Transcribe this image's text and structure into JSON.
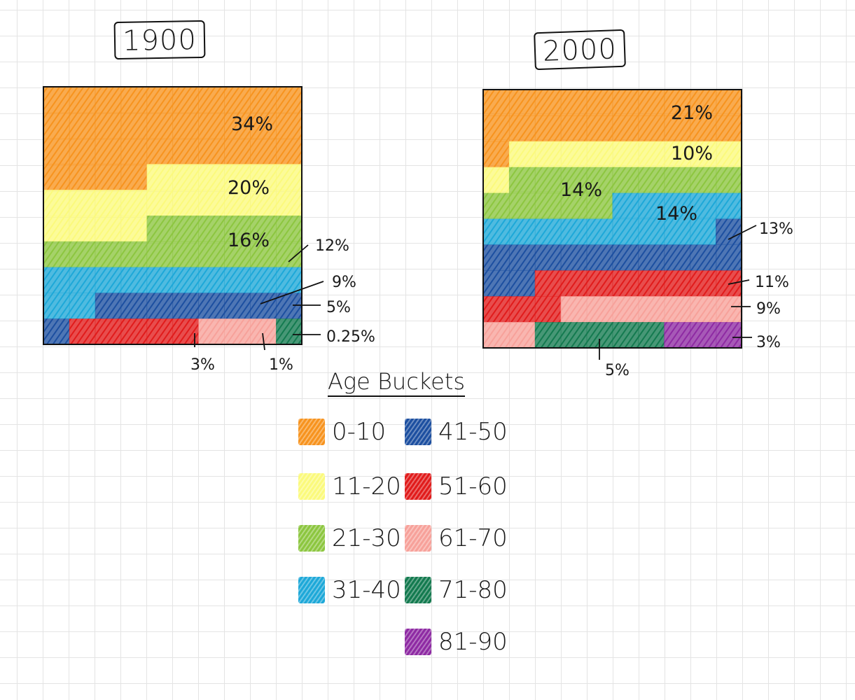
{
  "chart_data": [
    {
      "type": "waffle",
      "title": "1900",
      "grid_cells": 100,
      "series": [
        {
          "name": "0-10",
          "label": "34%",
          "value": 34,
          "color": "#f7931e"
        },
        {
          "name": "11-20",
          "label": "20%",
          "value": 20,
          "color": "#fbfa7c"
        },
        {
          "name": "21-30",
          "label": "16%",
          "value": 16,
          "color": "#8cc63f"
        },
        {
          "name": "31-40",
          "label": "12%",
          "value": 12,
          "color": "#1da8d8"
        },
        {
          "name": "41-50",
          "label": "9%",
          "value": 9,
          "color": "#1c4fa0"
        },
        {
          "name": "51-60",
          "label": "5%",
          "value": 5,
          "color": "#e11b1b"
        },
        {
          "name": "61-70",
          "label": "3%",
          "value": 3,
          "color": "#f7a19a"
        },
        {
          "name": "71-80",
          "label": "1%",
          "value": 1,
          "color": "#137a4f"
        },
        {
          "name": "81-90",
          "label": "0.25%",
          "value": 0.25,
          "color": "#8e2aa3"
        }
      ]
    },
    {
      "type": "waffle",
      "title": "2000",
      "grid_cells": 100,
      "series": [
        {
          "name": "0-10",
          "label": "21%",
          "value": 21,
          "color": "#f7931e"
        },
        {
          "name": "11-20",
          "label": "10%",
          "value": 10,
          "color": "#fbfa7c"
        },
        {
          "name": "21-30",
          "label": "14%",
          "value": 14,
          "color": "#8cc63f"
        },
        {
          "name": "31-40",
          "label": "14%",
          "value": 14,
          "color": "#1da8d8"
        },
        {
          "name": "41-50",
          "label": "13%",
          "value": 13,
          "color": "#1c4fa0"
        },
        {
          "name": "51-60",
          "label": "11%",
          "value": 11,
          "color": "#e11b1b"
        },
        {
          "name": "61-70",
          "label": "9%",
          "value": 9,
          "color": "#f7a19a"
        },
        {
          "name": "71-80",
          "label": "5%",
          "value": 5,
          "color": "#137a4f"
        },
        {
          "name": "81-90",
          "label": "3%",
          "value": 3,
          "color": "#8e2aa3"
        }
      ]
    }
  ],
  "legend": {
    "title": "Age Buckets",
    "items": [
      {
        "label": "0-10",
        "color": "#f7931e"
      },
      {
        "label": "11-20",
        "color": "#fbfa7c"
      },
      {
        "label": "21-30",
        "color": "#8cc63f"
      },
      {
        "label": "31-40",
        "color": "#1da8d8"
      },
      {
        "label": "41-50",
        "color": "#1c4fa0"
      },
      {
        "label": "51-60",
        "color": "#e11b1b"
      },
      {
        "label": "61-70",
        "color": "#f7a19a"
      },
      {
        "label": "71-80",
        "color": "#137a4f"
      },
      {
        "label": "81-90",
        "color": "#8e2aa3"
      }
    ]
  }
}
